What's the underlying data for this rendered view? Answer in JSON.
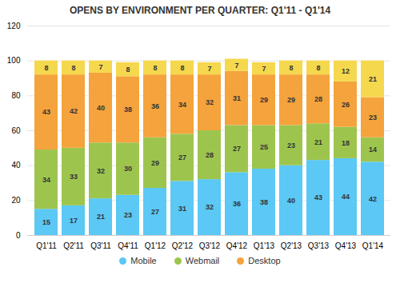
{
  "chart_data": {
    "type": "bar",
    "title": "OPENS BY ENVIRONMENT PER QUARTER: Q1'11 - Q1'14",
    "categories": [
      "Q1'11",
      "Q2'11",
      "Q3'11",
      "Q4'11",
      "Q1'12",
      "Q2'12",
      "Q3'12",
      "Q4'12",
      "Q1'13",
      "Q2'13",
      "Q3'13",
      "Q4'13",
      "Q1'14"
    ],
    "series": [
      {
        "name": "Mobile",
        "color": "#5bc8f5",
        "values": [
          15,
          17,
          21,
          23,
          27,
          31,
          32,
          36,
          38,
          40,
          43,
          44,
          42
        ]
      },
      {
        "name": "Webmail",
        "color": "#9dc54e",
        "values": [
          34,
          33,
          32,
          30,
          29,
          27,
          28,
          27,
          25,
          23,
          21,
          18,
          14
        ]
      },
      {
        "name": "Desktop",
        "color": "#f5a33c",
        "values": [
          43,
          42,
          40,
          38,
          36,
          34,
          32,
          31,
          29,
          29,
          28,
          26,
          23
        ]
      },
      {
        "color": "#f5d84e",
        "values": [
          8,
          8,
          7,
          8,
          8,
          8,
          7,
          7,
          7,
          8,
          8,
          12,
          21
        ]
      }
    ],
    "stacked": true,
    "data_labels": true,
    "ylim": [
      0,
      120
    ],
    "yticks": [
      0,
      20,
      40,
      60,
      80,
      100,
      120
    ],
    "grid": true,
    "legend": "bottom"
  }
}
